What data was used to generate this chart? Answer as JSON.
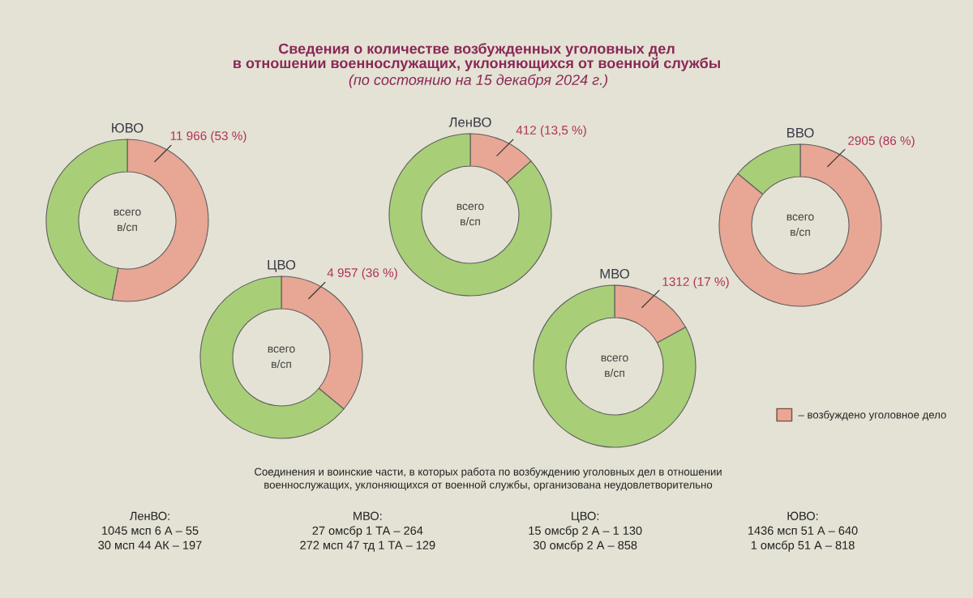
{
  "chart_data": [
    {
      "type": "other",
      "title": "Сведения о количестве возбужденных уголовных дел\nв отношении военнослужащих, уклоняющихся от военной службы",
      "subtitle": "(по состоянию на 15 декабря 2024 г.)"
    },
    {
      "type": "donut",
      "title": "ЮВО",
      "categories": [
        null,
        null
      ],
      "values": [
        53,
        47
      ],
      "colors": [
        "#e8a694",
        "#a8cf78"
      ],
      "value_labels": [
        "11 966 (53 %)",
        null
      ],
      "annotations": [
        "всего\nв/сп"
      ]
    },
    {
      "type": "donut",
      "title": "ЛенВО",
      "categories": [
        null,
        null
      ],
      "values": [
        13.5,
        86.5
      ],
      "colors": [
        "#e8a694",
        "#a8cf78"
      ],
      "value_labels": [
        "412 (13,5 %)",
        null
      ],
      "annotations": [
        "всего\nв/сп"
      ]
    },
    {
      "type": "donut",
      "title": "ВВО",
      "categories": [
        "– возбуждено уголовное дело",
        null
      ],
      "values": [
        86,
        14
      ],
      "colors": [
        "#e8a694",
        "#a8cf78"
      ],
      "value_labels": [
        "2905 (86 %)",
        null
      ],
      "annotations": [
        "всего\nв/сп"
      ],
      "legend": "bottom right"
    },
    {
      "type": "donut",
      "title": "ЦВО",
      "categories": [
        null,
        null
      ],
      "values": [
        36,
        64
      ],
      "colors": [
        "#e8a694",
        "#a8cf78"
      ],
      "value_labels": [
        "4 957 (36 %)",
        null
      ],
      "annotations": [
        "всего\nв/сп"
      ]
    },
    {
      "type": "donut",
      "title": "МВО",
      "categories": [
        null,
        null
      ],
      "values": [
        17,
        83
      ],
      "colors": [
        "#e8a694",
        "#a8cf78"
      ],
      "value_labels": [
        "1312 (17 %)",
        null
      ],
      "annotations": [
        "всего\nв/сп"
      ]
    },
    {
      "type": "other",
      "annotations": [
        "Соединения и воинские части, в которых работа по возбуждению уголовных дел в отношении\nвоеннослужащих, уклоняющихся от военной службы, организована неудовлетворительно",
        "ЛенВО:",
        "1045 мсп 6 А – 55",
        "30 мсп 44 АК – 197",
        "МВО:",
        "27 омсбр 1 ТА – 264",
        "272 мсп 47 тд 1 ТА – 129",
        "ЦВО:",
        "15 омсбр 2 А – 1 130",
        "30 омсбр 2 А – 858",
        "ЮВО:",
        "1436 мсп 51 А – 640",
        "1 омсбр 51 А – 818"
      ]
    }
  ]
}
